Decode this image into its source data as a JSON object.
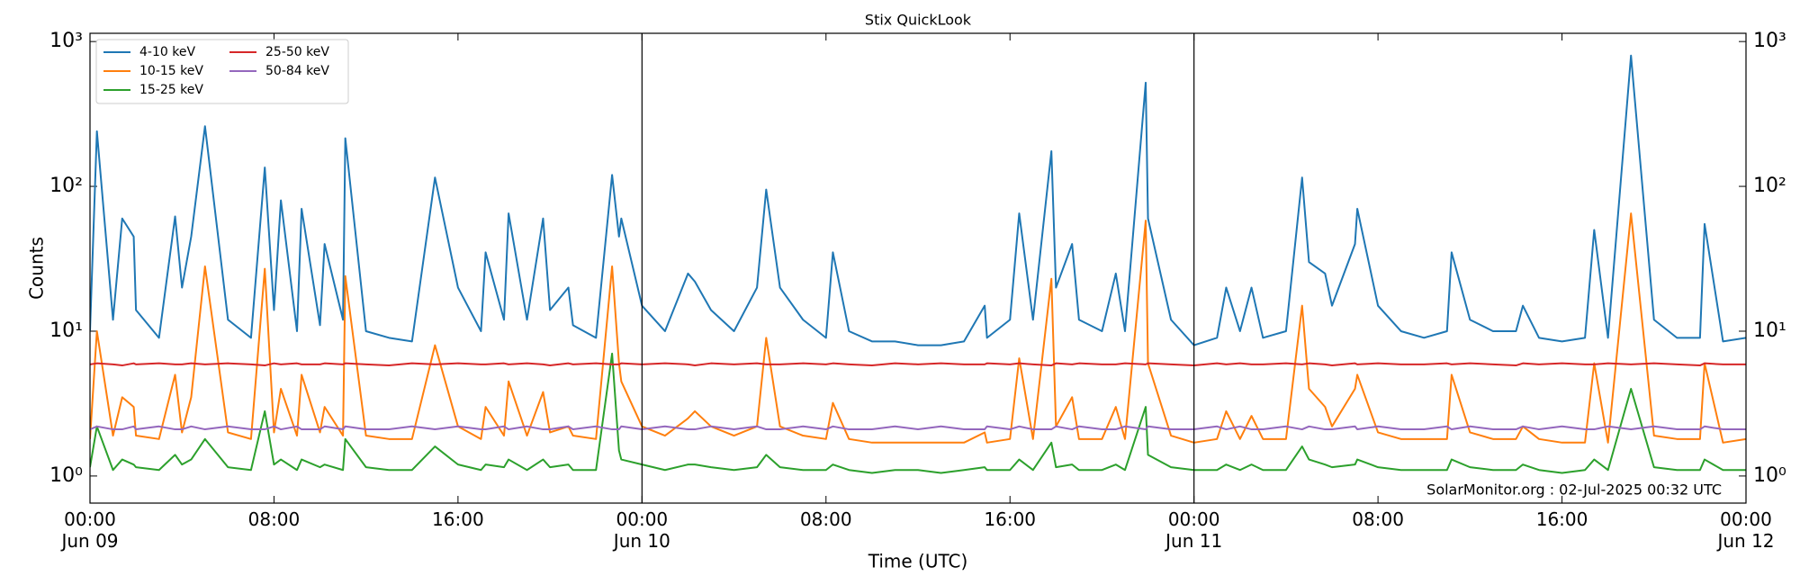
{
  "chart_data": {
    "type": "line",
    "title": "Stix QuickLook",
    "ylabel": "Counts",
    "xlabel": "Time (UTC)",
    "annotation": "SolarMonitor.org : 02-Jul-2025 00:32 UTC",
    "yscale": "log",
    "legend": "upper left",
    "x": [
      0,
      0.3,
      1,
      1.4,
      1.9,
      2,
      3,
      3.7,
      4,
      4.4,
      5,
      6,
      7,
      7.6,
      8,
      8.3,
      9,
      9.2,
      10,
      10.2,
      11,
      11.1,
      12,
      13,
      14,
      15,
      16,
      17,
      17.2,
      18,
      18.2,
      19,
      19.7,
      20,
      20.8,
      21,
      22,
      22.7,
      23,
      23.1,
      24,
      25,
      26,
      26.3,
      27,
      28,
      29,
      29.4,
      30,
      31,
      32,
      32.3,
      33,
      34,
      35,
      36,
      37,
      38,
      38.9,
      39,
      40,
      40.4,
      41,
      41.8,
      42,
      42.7,
      43,
      44,
      44.6,
      45,
      45.9,
      46,
      47,
      48,
      49,
      49.4,
      50,
      50.5,
      51,
      52,
      52.7,
      53,
      53.7,
      54,
      55,
      55.1,
      56,
      57,
      58,
      59,
      59.2,
      60,
      61,
      62,
      62.3,
      63,
      64,
      65,
      65.4,
      66,
      67,
      68,
      69,
      70,
      70.2,
      71,
      72
    ],
    "xlim": [
      0,
      72
    ],
    "xticks": [
      {
        "value": 0,
        "label": "00:00\nJun 09"
      },
      {
        "value": 8,
        "label": "08:00"
      },
      {
        "value": 16,
        "label": "16:00"
      },
      {
        "value": 24,
        "label": "00:00\nJun 10"
      },
      {
        "value": 32,
        "label": "08:00"
      },
      {
        "value": 40,
        "label": "16:00"
      },
      {
        "value": 48,
        "label": "00:00\nJun 11"
      },
      {
        "value": 56,
        "label": "08:00"
      },
      {
        "value": 64,
        "label": "16:00"
      },
      {
        "value": 72,
        "label": "00:00\nJun 12"
      }
    ],
    "vlines": [
      24,
      48
    ],
    "ylim": [
      0.65,
      1140
    ],
    "yticks": [
      {
        "value": 1,
        "label": "10⁰"
      },
      {
        "value": 10,
        "label": "10¹"
      },
      {
        "value": 100,
        "label": "10²"
      },
      {
        "value": 1000,
        "label": "10³"
      }
    ],
    "series": [
      {
        "name": "4-10 keV",
        "color": "#1f77b4",
        "values": [
          10,
          240,
          12,
          60,
          45,
          14,
          9,
          62,
          20,
          45,
          260,
          12,
          9,
          135,
          14,
          80,
          10,
          70,
          11,
          40,
          12,
          215,
          10,
          9,
          8.5,
          115,
          20,
          10,
          35,
          12,
          65,
          12,
          60,
          14,
          20,
          11,
          9,
          120,
          45,
          60,
          15,
          10,
          25,
          22,
          14,
          10,
          20,
          95,
          20,
          12,
          9,
          35,
          10,
          8.5,
          8.5,
          8,
          8,
          8.5,
          15,
          9,
          12,
          65,
          12,
          175,
          20,
          40,
          12,
          10,
          25,
          10,
          520,
          60,
          12,
          8,
          9,
          20,
          10,
          20,
          9,
          10,
          115,
          30,
          25,
          15,
          40,
          70,
          15,
          10,
          9,
          10,
          35,
          12,
          10,
          10,
          15,
          9,
          8.5,
          9,
          50,
          9,
          800,
          12,
          9,
          9,
          55,
          8.5,
          9
        ]
      },
      {
        "name": "10-15 keV",
        "color": "#ff7f0e",
        "values": [
          1.8,
          10,
          1.9,
          3.5,
          3,
          1.9,
          1.8,
          5,
          2,
          3.5,
          28,
          2,
          1.8,
          27,
          2,
          4,
          1.9,
          5,
          2,
          3,
          1.9,
          24,
          1.9,
          1.8,
          1.8,
          8,
          2.2,
          1.8,
          3,
          1.9,
          4.5,
          1.9,
          3.8,
          2,
          2.2,
          1.9,
          1.8,
          28,
          6,
          4.5,
          2.2,
          1.9,
          2.5,
          2.8,
          2.2,
          1.9,
          2.2,
          9,
          2.2,
          1.9,
          1.8,
          3.2,
          1.8,
          1.7,
          1.7,
          1.7,
          1.7,
          1.7,
          2,
          1.7,
          1.8,
          6.5,
          1.8,
          23,
          2.2,
          3.5,
          1.8,
          1.8,
          3,
          1.8,
          58,
          6,
          1.9,
          1.7,
          1.8,
          2.8,
          1.8,
          2.6,
          1.8,
          1.8,
          15,
          4,
          3,
          2.2,
          4,
          5,
          2,
          1.8,
          1.8,
          1.8,
          5,
          2,
          1.8,
          1.8,
          2.2,
          1.8,
          1.7,
          1.7,
          6,
          1.7,
          65,
          1.9,
          1.8,
          1.8,
          6,
          1.7,
          1.8
        ]
      },
      {
        "name": "15-25 keV",
        "color": "#2ca02c",
        "values": [
          1.15,
          2.2,
          1.1,
          1.3,
          1.2,
          1.15,
          1.1,
          1.4,
          1.2,
          1.3,
          1.8,
          1.15,
          1.1,
          2.8,
          1.2,
          1.3,
          1.1,
          1.3,
          1.15,
          1.2,
          1.1,
          1.8,
          1.15,
          1.1,
          1.1,
          1.6,
          1.2,
          1.1,
          1.2,
          1.15,
          1.3,
          1.1,
          1.3,
          1.15,
          1.2,
          1.1,
          1.1,
          7,
          1.5,
          1.3,
          1.2,
          1.1,
          1.2,
          1.2,
          1.15,
          1.1,
          1.15,
          1.4,
          1.15,
          1.1,
          1.1,
          1.2,
          1.1,
          1.05,
          1.1,
          1.1,
          1.05,
          1.1,
          1.15,
          1.1,
          1.1,
          1.3,
          1.1,
          1.7,
          1.15,
          1.2,
          1.1,
          1.1,
          1.2,
          1.1,
          3,
          1.4,
          1.15,
          1.1,
          1.1,
          1.2,
          1.1,
          1.2,
          1.1,
          1.1,
          1.6,
          1.3,
          1.2,
          1.15,
          1.2,
          1.3,
          1.15,
          1.1,
          1.1,
          1.1,
          1.3,
          1.15,
          1.1,
          1.1,
          1.2,
          1.1,
          1.05,
          1.1,
          1.3,
          1.1,
          4,
          1.15,
          1.1,
          1.1,
          1.3,
          1.1,
          1.1
        ]
      },
      {
        "name": "25-50 keV",
        "color": "#d62728",
        "values": [
          5.9,
          6.0,
          5.9,
          5.8,
          6.0,
          5.9,
          6.0,
          5.9,
          5.9,
          6.0,
          5.9,
          6.0,
          5.9,
          5.8,
          6.0,
          5.9,
          6.0,
          5.9,
          5.9,
          6.0,
          5.9,
          6.0,
          5.9,
          5.8,
          6.0,
          5.9,
          6.0,
          5.9,
          5.9,
          6.0,
          5.9,
          6.0,
          5.9,
          5.8,
          6.0,
          5.9,
          6.0,
          5.9,
          5.9,
          6.0,
          5.9,
          6.0,
          5.9,
          5.8,
          6.0,
          5.9,
          6.0,
          5.9,
          5.9,
          6.0,
          5.9,
          6.0,
          5.9,
          5.8,
          6.0,
          5.9,
          6.0,
          5.9,
          5.9,
          6.0,
          5.9,
          6.0,
          5.9,
          5.8,
          6.0,
          5.9,
          6.0,
          5.9,
          5.9,
          6.0,
          5.9,
          6.0,
          5.9,
          5.8,
          6.0,
          5.9,
          6.0,
          5.9,
          5.9,
          6.0,
          5.9,
          6.0,
          5.9,
          5.8,
          6.0,
          5.9,
          6.0,
          5.9,
          5.9,
          6.0,
          5.9,
          6.0,
          5.9,
          5.8,
          6.0,
          5.9,
          6.0,
          5.9,
          5.9,
          6.0,
          5.9,
          6.0,
          5.9,
          5.8,
          6.0,
          5.9,
          5.9
        ]
      },
      {
        "name": "50-84 keV",
        "color": "#9467bd",
        "values": [
          2.1,
          2.2,
          2.1,
          2.1,
          2.2,
          2.1,
          2.2,
          2.1,
          2.1,
          2.2,
          2.1,
          2.2,
          2.1,
          2.1,
          2.2,
          2.1,
          2.2,
          2.1,
          2.1,
          2.2,
          2.1,
          2.2,
          2.1,
          2.1,
          2.2,
          2.1,
          2.2,
          2.1,
          2.1,
          2.2,
          2.1,
          2.2,
          2.1,
          2.1,
          2.2,
          2.1,
          2.2,
          2.1,
          2.1,
          2.2,
          2.1,
          2.2,
          2.1,
          2.1,
          2.2,
          2.1,
          2.2,
          2.1,
          2.1,
          2.2,
          2.1,
          2.2,
          2.1,
          2.1,
          2.2,
          2.1,
          2.2,
          2.1,
          2.1,
          2.2,
          2.1,
          2.2,
          2.1,
          2.1,
          2.2,
          2.1,
          2.2,
          2.1,
          2.1,
          2.2,
          2.1,
          2.2,
          2.1,
          2.1,
          2.2,
          2.1,
          2.2,
          2.1,
          2.1,
          2.2,
          2.1,
          2.2,
          2.1,
          2.1,
          2.2,
          2.1,
          2.2,
          2.1,
          2.1,
          2.2,
          2.1,
          2.2,
          2.1,
          2.1,
          2.2,
          2.1,
          2.2,
          2.1,
          2.1,
          2.2,
          2.1,
          2.2,
          2.1,
          2.1,
          2.2,
          2.1,
          2.1
        ]
      }
    ]
  }
}
